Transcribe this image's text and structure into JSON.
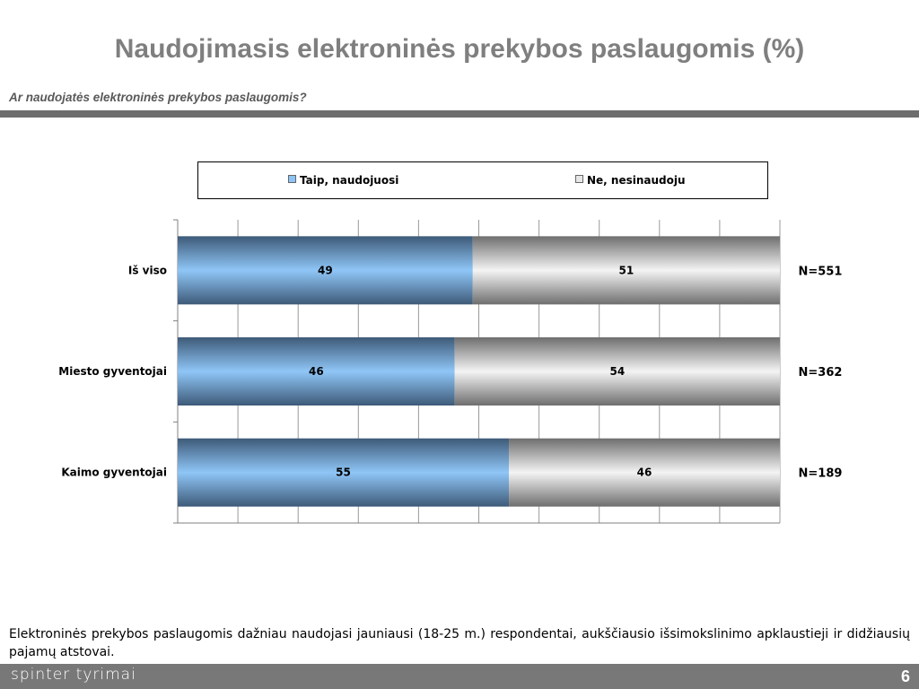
{
  "slide": {
    "title": "Naudojimasis elektroninės prekybos paslaugomis (%)",
    "subtitle": "Ar naudojatės elektroninės prekybos paslaugomis?",
    "note": "Elektroninės prekybos paslaugomis dažniau naudojasi jauniausi (18-25 m.) respondentai, aukščiausio išsimokslinimo apklaustieji ir didžiausių pajamų atstovai.",
    "brand": "spinter tyrimai",
    "page_number": "6"
  },
  "chart_data": {
    "type": "bar",
    "orientation": "horizontal",
    "stacked": true,
    "categories": [
      "Iš viso",
      "Miesto gyventojai",
      "Kaimo gyventojai"
    ],
    "series": [
      {
        "name": "Taip, naudojuosi",
        "values": [
          49,
          46,
          55
        ],
        "color": "#8cc4f6"
      },
      {
        "name": "Ne, nesinaudoju",
        "values": [
          51,
          54,
          46
        ],
        "color": "#e6e6e6"
      }
    ],
    "annotations": [
      "N=551",
      "N=362",
      "N=189"
    ],
    "xlim": [
      0,
      100
    ],
    "grid": true,
    "legend": "top"
  }
}
